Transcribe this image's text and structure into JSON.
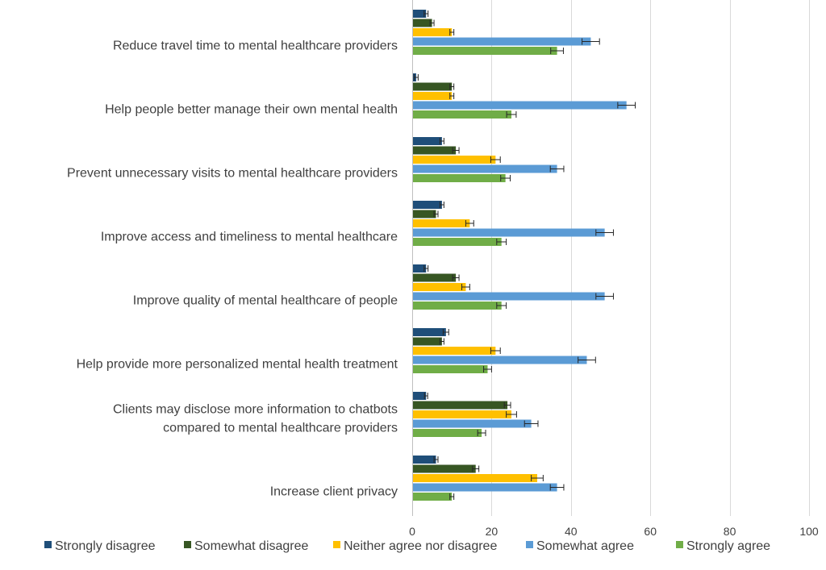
{
  "chart_data": {
    "type": "bar",
    "orientation": "horizontal",
    "categories": [
      [
        "Reduce travel time to mental healthcare providers"
      ],
      [
        "Help people better manage their own mental health"
      ],
      [
        "Prevent unnecessary visits to mental healthcare providers"
      ],
      [
        "Improve access and timeliness to mental healthcare"
      ],
      [
        "Improve quality of mental healthcare of people"
      ],
      [
        "Help provide more personalized mental health treatment"
      ],
      [
        "Clients may disclose more information to chatbots",
        "compared to mental healthcare providers"
      ],
      [
        "Increase client privacy"
      ]
    ],
    "series": [
      {
        "name": "Strongly disagree",
        "color": "#1f4e79",
        "values": [
          3.5,
          1,
          7.5,
          7.5,
          3.5,
          8.5,
          3.5,
          6
        ],
        "errors": [
          0.5,
          0.5,
          0.5,
          0.5,
          0.5,
          0.7,
          0.4,
          0.5
        ]
      },
      {
        "name": "Somewhat disagree",
        "color": "#375623",
        "values": [
          5,
          10,
          11,
          6,
          11,
          7.5,
          24,
          16
        ],
        "errors": [
          0.5,
          0.5,
          0.8,
          0.5,
          0.8,
          0.5,
          0.8,
          0.8
        ]
      },
      {
        "name": "Neither agree nor disagree",
        "color": "#ffc000",
        "values": [
          10,
          10,
          21,
          14.5,
          13.5,
          21,
          25,
          31.5
        ],
        "errors": [
          0.5,
          0.5,
          1.2,
          1,
          1,
          1.2,
          1.3,
          1.5
        ]
      },
      {
        "name": "Somewhat agree",
        "color": "#5b9bd5",
        "values": [
          45,
          54,
          36.5,
          48.5,
          48.5,
          44,
          30,
          36.5
        ],
        "errors": [
          2.2,
          2.2,
          1.7,
          2.2,
          2.2,
          2.2,
          1.7,
          1.7
        ]
      },
      {
        "name": "Strongly agree",
        "color": "#70ad47",
        "values": [
          36.5,
          25,
          23.5,
          22.5,
          22.5,
          19,
          17.5,
          10
        ],
        "errors": [
          1.6,
          1.2,
          1.2,
          1.2,
          1.2,
          1,
          1,
          0.5
        ]
      }
    ],
    "xlim": [
      0,
      100
    ],
    "xticks": [
      0,
      20,
      40,
      60,
      80,
      100
    ],
    "grid": true,
    "legend": "bottom"
  }
}
